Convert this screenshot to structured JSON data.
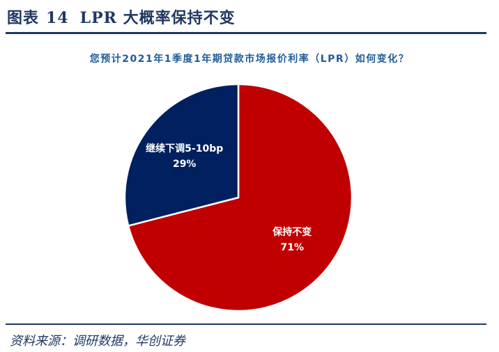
{
  "figure": {
    "label": "图表",
    "number": "14",
    "title": "LPR 大概率保持不变"
  },
  "source": "资料来源：调研数据，华创证券",
  "colors": {
    "header": "#1f3864",
    "chart_title": "#1f5c99",
    "slice_keep": "#c00000",
    "slice_cut": "#002060"
  },
  "chart_data": {
    "type": "pie",
    "title": "您预计2021年1季度1年期贷款市场报价利率（LPR）如何变化？",
    "slices": [
      {
        "label": "保持不变",
        "value": 71,
        "display": "71%",
        "color": "#c00000"
      },
      {
        "label": "继续下调5-10bp",
        "value": 29,
        "display": "29%",
        "color": "#002060"
      }
    ],
    "start": "12 o'clock",
    "direction": "clockwise"
  }
}
